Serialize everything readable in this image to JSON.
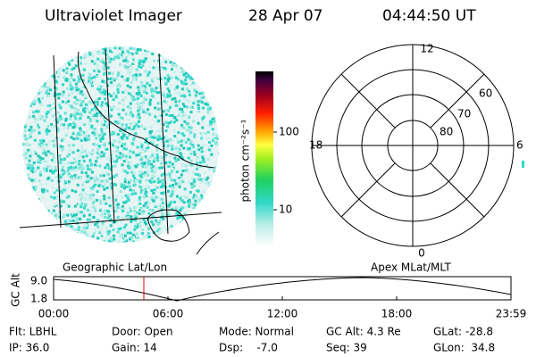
{
  "header": {
    "title": "Ultraviolet Imager",
    "date": "28 Apr 07",
    "time": "04:44:50 UT"
  },
  "colorbar": {
    "label": "photon cm⁻²s⁻¹",
    "ticks": [
      "100",
      "10"
    ]
  },
  "polar": {
    "labels": {
      "top": "12",
      "left": "18",
      "right": "6",
      "bottom": "0",
      "ring60": "60",
      "ring70": "70",
      "ring80": "80"
    }
  },
  "timeline": {
    "left_label": "Geographic Lat/Lon",
    "right_label": "Apex MLat/MLT",
    "y_label": "GC Alt",
    "y_ticks": [
      "9.0",
      "1.8"
    ],
    "x_ticks": [
      "00:00",
      "06:00",
      "12:00",
      "18:00",
      "23:59"
    ]
  },
  "status": {
    "rows": [
      [
        "Flt: LBHL",
        "Door: Open",
        "Mode: Normal",
        "GC Alt: 4.3 Re",
        "GLat: -28.8"
      ],
      [
        "IP: 36.0",
        "Gain: 14",
        "Dsp:    -7.0",
        "Seq: 39",
        "GLon:  34.8"
      ]
    ]
  }
}
